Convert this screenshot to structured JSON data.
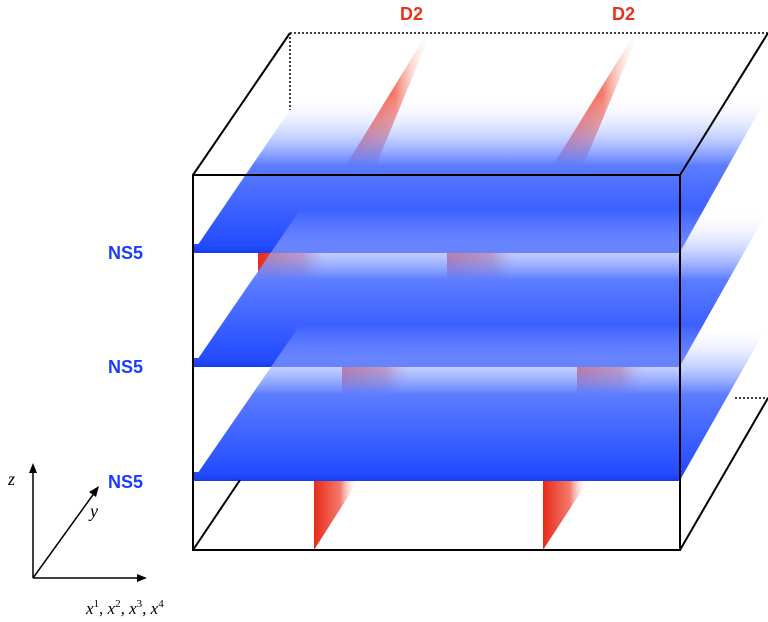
{
  "labels": {
    "d2_left": "D2",
    "d2_right": "D2",
    "ns5_top": "NS5",
    "ns5_middle": "NS5",
    "ns5_bottom": "NS5"
  },
  "axes": {
    "z": "z",
    "y": "y",
    "x_main": "x",
    "x_sup1": "1",
    "x_sup2": "2",
    "x_sup3": "3",
    "x_sup4": "4",
    "sep": ","
  },
  "colors": {
    "ns5_label": "#1a3cff",
    "d2_label": "#e8321e",
    "brane_blue": "#1f4dff",
    "brane_red": "#ee2a1a"
  }
}
